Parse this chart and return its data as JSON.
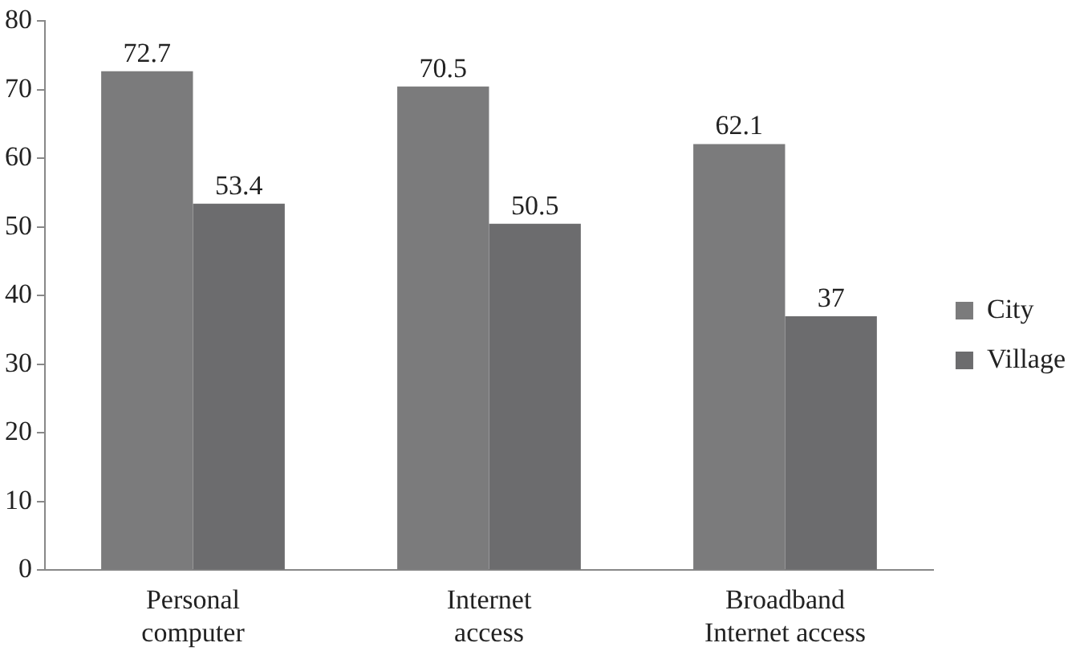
{
  "chart_data": {
    "type": "bar",
    "categories": [
      "Personal computer",
      "Internet access",
      "Broadband Internet access"
    ],
    "series": [
      {
        "name": "City",
        "color": "#7b7b7c",
        "values": [
          72.7,
          70.5,
          62.1
        ]
      },
      {
        "name": "Village",
        "color": "#6c6c6e",
        "values": [
          53.4,
          50.5,
          37
        ]
      }
    ],
    "ylim": [
      0,
      80
    ],
    "yticks": [
      0,
      10,
      20,
      30,
      40,
      50,
      60,
      70,
      80
    ],
    "grid": false,
    "legend": "right",
    "data_labels": true
  }
}
